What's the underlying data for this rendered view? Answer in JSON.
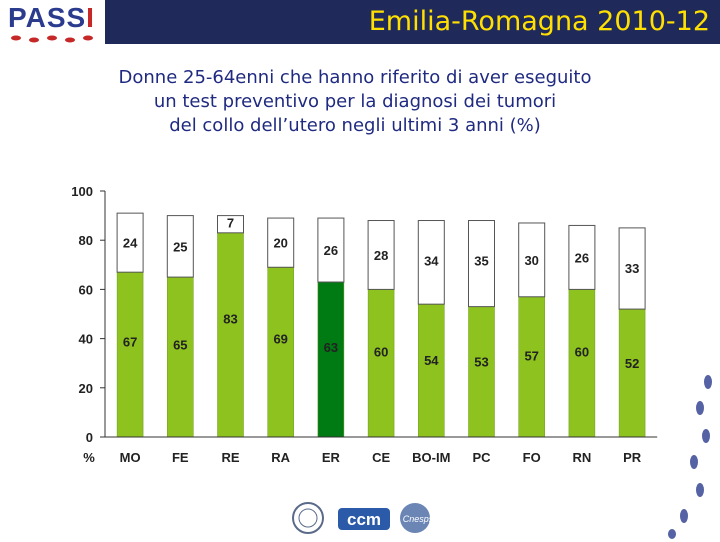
{
  "header": {
    "title": "Emilia-Romagna 2010-12",
    "logo_text_blue": "PASS",
    "logo_text_red": "I",
    "band_color": "#1f2a5a",
    "title_color": "#ffe000"
  },
  "subtitle": {
    "line1": "Donne 25-64enni che hanno riferito di aver eseguito",
    "line2": "un test preventivo per la diagnosi dei tumori",
    "line3": "del collo dell’utero negli ultimi 3 anni (%)"
  },
  "chart_data": {
    "type": "bar",
    "stacked": true,
    "title": "Donne 25-64enni che hanno riferito di aver eseguito un test preventivo per la diagnosi dei tumori del collo dell’utero negli ultimi 3 anni (%)",
    "xlabel": "",
    "ylabel": "",
    "axis_unit_label": "%",
    "ylim": [
      0,
      100
    ],
    "yticks": [
      0,
      20,
      40,
      60,
      80,
      100
    ],
    "categories": [
      "MO",
      "FE",
      "RE",
      "RA",
      "ER",
      "CE",
      "BO-IM",
      "PC",
      "FO",
      "RN",
      "PR"
    ],
    "highlight": "ER",
    "series": [
      {
        "name": "green",
        "color": "#8dc21f",
        "highlight_color": "#007a12",
        "values": [
          67,
          65,
          83,
          69,
          63,
          60,
          54,
          53,
          57,
          60,
          52
        ]
      },
      {
        "name": "white",
        "color": "#ffffff",
        "values": [
          24,
          25,
          7,
          20,
          26,
          28,
          34,
          35,
          30,
          26,
          33
        ]
      }
    ]
  },
  "footer": {
    "logo_1": "ccm",
    "logo_2": "Cnesps"
  }
}
